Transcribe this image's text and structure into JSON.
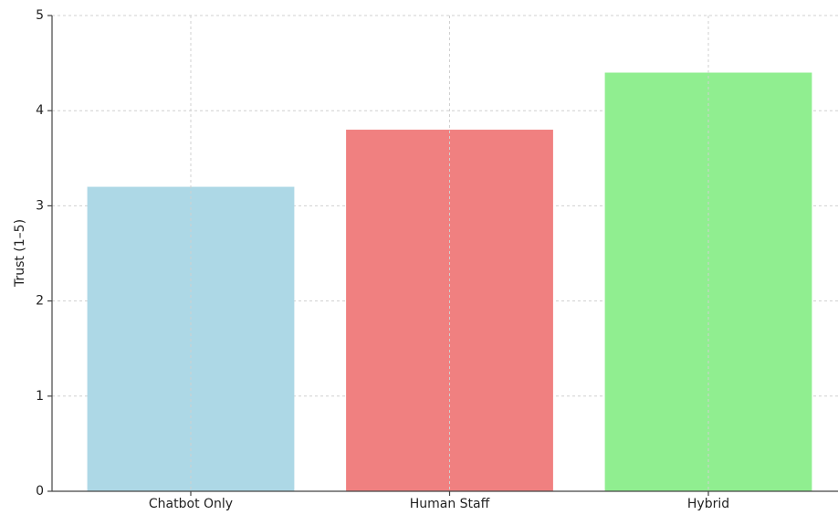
{
  "chart_data": {
    "type": "bar",
    "y_label": "Trust (1–5)",
    "categories": [
      "Chatbot Only",
      "Human Staff",
      "Hybrid"
    ],
    "values": [
      3.2,
      3.8,
      4.4
    ],
    "colors": [
      "#add8e6",
      "#f08080",
      "#90ee90"
    ],
    "ylim": [
      0,
      5
    ],
    "yticks": [
      0,
      1,
      2,
      3,
      4,
      5
    ],
    "grid": true
  }
}
